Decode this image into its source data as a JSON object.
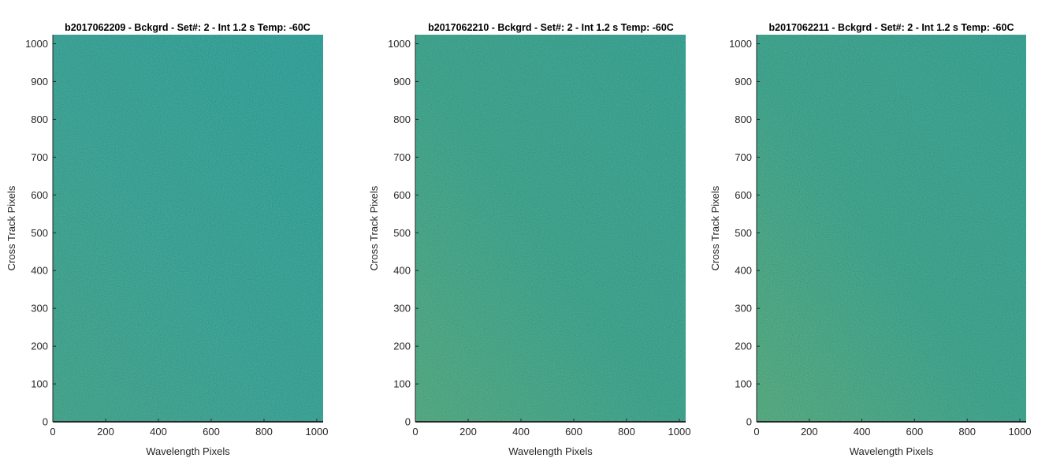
{
  "chart_data": [
    {
      "type": "heatmap",
      "title": "b2017062209 - Bckgrd - Set#: 2 - Int 1.2 s Temp: -60C",
      "xlabel": "Wavelength Pixels",
      "ylabel": "Cross Track Pixels",
      "xlim": [
        0,
        1024
      ],
      "ylim": [
        0,
        1024
      ],
      "xticks": [
        0,
        200,
        400,
        600,
        800,
        1000
      ],
      "yticks": [
        0,
        100,
        200,
        300,
        400,
        500,
        600,
        700,
        800,
        900,
        1000
      ],
      "colormap": "parula",
      "appearance": "noisy background frame, mostly uniform teal; slightly warmer (greener) toward bottom-left edge",
      "warm_bias_left": 0.15
    },
    {
      "type": "heatmap",
      "title": "b2017062210 - Bckgrd - Set#: 2 - Int 1.2 s Temp: -60C",
      "xlabel": "Wavelength Pixels",
      "ylabel": "Cross Track Pixels",
      "xlim": [
        0,
        1024
      ],
      "ylim": [
        0,
        1024
      ],
      "xticks": [
        0,
        200,
        400,
        600,
        800,
        1000
      ],
      "yticks": [
        0,
        100,
        200,
        300,
        400,
        500,
        600,
        700,
        800,
        900,
        1000
      ],
      "colormap": "parula",
      "appearance": "noisy background frame, teal-green; warmer (yellow-green) along left edge",
      "warm_bias_left": 0.4
    },
    {
      "type": "heatmap",
      "title": "b2017062211 - Bckgrd - Set#: 2 - Int 1.2 s Temp: -60C",
      "xlabel": "Wavelength Pixels",
      "ylabel": "Cross Track Pixels",
      "xlim": [
        0,
        1024
      ],
      "ylim": [
        0,
        1024
      ],
      "xticks": [
        0,
        200,
        400,
        600,
        800,
        1000
      ],
      "yticks": [
        0,
        100,
        200,
        300,
        400,
        500,
        600,
        700,
        800,
        900,
        1000
      ],
      "colormap": "parula",
      "appearance": "noisy background frame, teal-green; warmer (yellow-green) along left edge",
      "warm_bias_left": 0.45
    }
  ]
}
